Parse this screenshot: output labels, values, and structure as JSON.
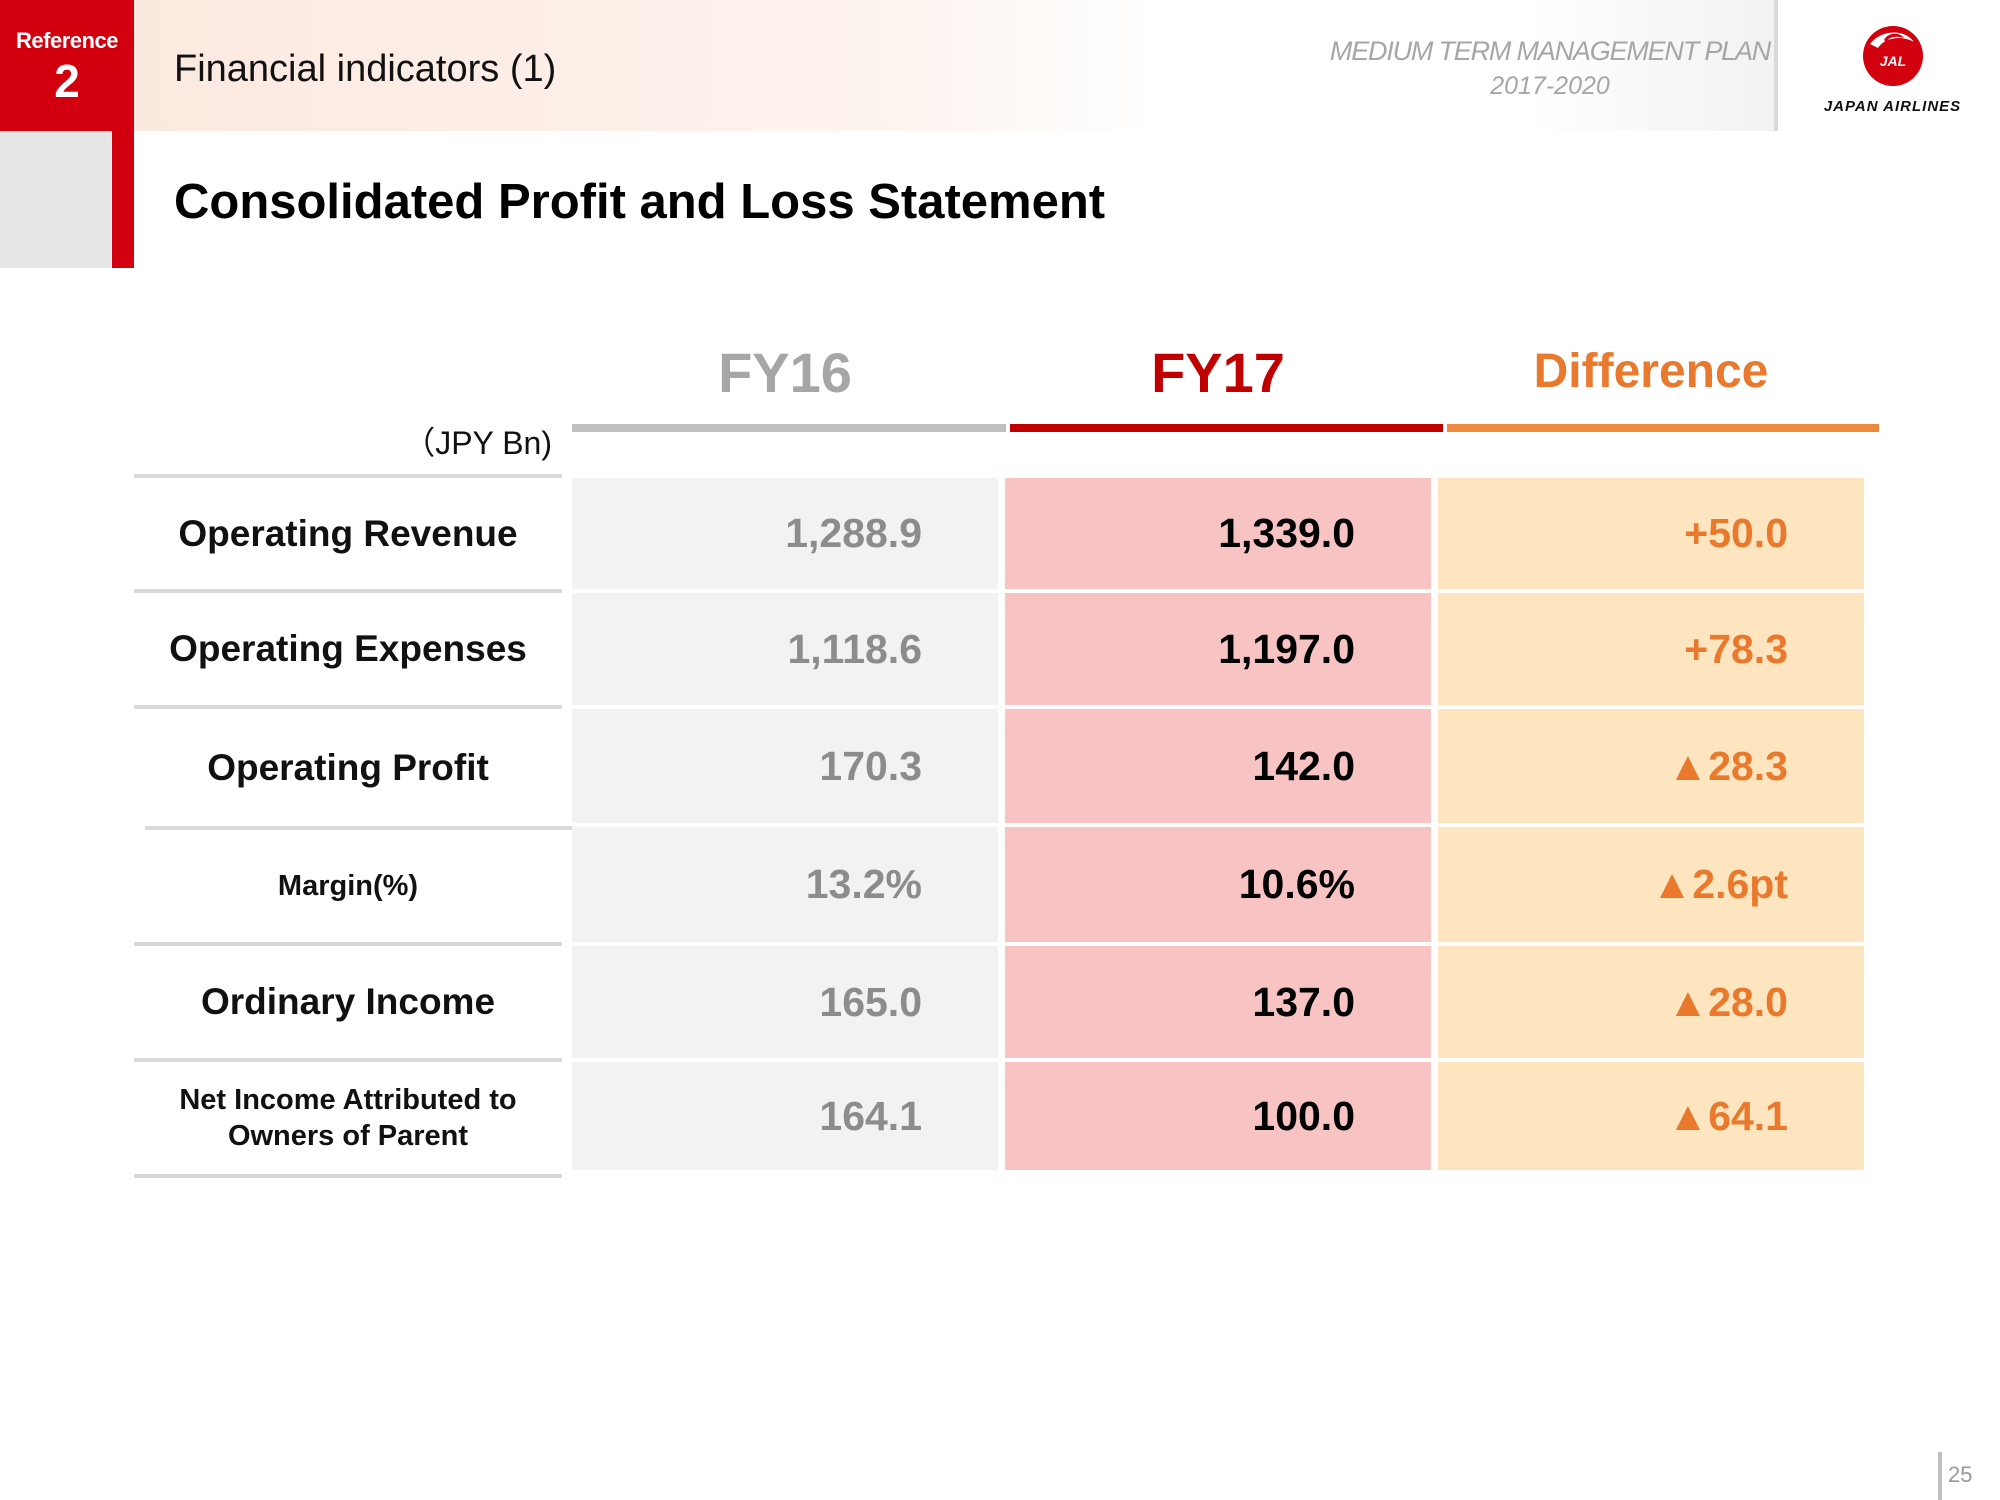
{
  "header": {
    "reference_label": "Reference",
    "reference_number": "2",
    "section_title": "Financial indicators (1)",
    "plan_title": "MEDIUM TERM MANAGEMENT PLAN",
    "plan_years": "2017-2020",
    "logo_text": "JAPAN AIRLINES",
    "logo_badge": "JAL"
  },
  "main_title": "Consolidated Profit and Loss Statement",
  "table": {
    "unit": "（JPY Bn)",
    "columns": {
      "fy16": "FY16",
      "fy17": "FY17",
      "diff": "Difference"
    },
    "rows": [
      {
        "label": "Operating Revenue",
        "fy16": "1,288.9",
        "fy17": "1,339.0",
        "diff": "+50.0"
      },
      {
        "label": "Operating Expenses",
        "fy16": "1,118.6",
        "fy17": "1,197.0",
        "diff": "+78.3"
      },
      {
        "label": "Operating Profit",
        "fy16": "170.3",
        "fy17": "142.0",
        "diff": "▲28.3"
      },
      {
        "label": "Margin(%)",
        "fy16": "13.2%",
        "fy17": "10.6%",
        "diff": "▲2.6pt"
      },
      {
        "label": "Ordinary Income",
        "fy16": "165.0",
        "fy17": "137.0",
        "diff": "▲28.0"
      },
      {
        "label_line1": "Net Income Attributed to",
        "label_line2": "Owners of Parent",
        "fy16": "164.1",
        "fy17": "100.0",
        "diff": "▲64.1"
      }
    ]
  },
  "page_number": "25",
  "colors": {
    "brand_red": "#d2000f",
    "fy16_grey": "#a6a6a6",
    "diff_orange": "#e8792d",
    "fy17_cell": "#f8c3c3",
    "diff_cell": "#fde5c0",
    "fy16_cell": "#f2f2f2"
  }
}
